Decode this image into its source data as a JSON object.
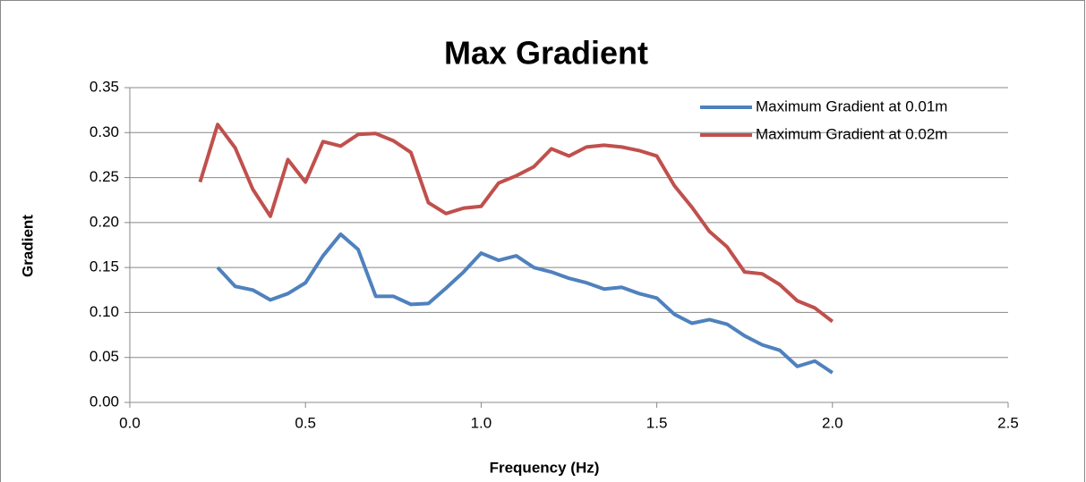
{
  "chart_data": {
    "type": "line",
    "title": "Max Gradient",
    "x_label": "Frequency (Hz)",
    "y_label": "Gradient",
    "series": [
      {
        "name": "Maximum Gradient at 0.01m",
        "color": "#4f81bd",
        "x": [
          0.25,
          0.3,
          0.35,
          0.4,
          0.45,
          0.5,
          0.55,
          0.6,
          0.65,
          0.7,
          0.75,
          0.8,
          0.85,
          0.9,
          0.95,
          1.0,
          1.05,
          1.1,
          1.15,
          1.2,
          1.25,
          1.3,
          1.35,
          1.4,
          1.45,
          1.5,
          1.55,
          1.6,
          1.65,
          1.7,
          1.75,
          1.8,
          1.85,
          1.9,
          1.95,
          2.0
        ],
        "values": [
          0.15,
          0.129,
          0.125,
          0.114,
          0.121,
          0.133,
          0.163,
          0.187,
          0.17,
          0.118,
          0.118,
          0.109,
          0.11,
          0.127,
          0.145,
          0.166,
          0.158,
          0.163,
          0.15,
          0.145,
          0.138,
          0.133,
          0.126,
          0.128,
          0.121,
          0.116,
          0.098,
          0.088,
          0.092,
          0.087,
          0.074,
          0.064,
          0.058,
          0.04,
          0.046,
          0.033
        ]
      },
      {
        "name": "Maximum Gradient at 0.02m",
        "color": "#c0504d",
        "x": [
          0.2,
          0.25,
          0.3,
          0.35,
          0.4,
          0.45,
          0.5,
          0.55,
          0.6,
          0.65,
          0.7,
          0.75,
          0.8,
          0.85,
          0.9,
          0.95,
          1.0,
          1.05,
          1.1,
          1.15,
          1.2,
          1.25,
          1.3,
          1.35,
          1.4,
          1.45,
          1.5,
          1.55,
          1.6,
          1.65,
          1.7,
          1.75,
          1.8,
          1.85,
          1.9,
          1.95,
          2.0
        ],
        "values": [
          0.245,
          0.309,
          0.283,
          0.237,
          0.207,
          0.27,
          0.245,
          0.29,
          0.285,
          0.298,
          0.299,
          0.291,
          0.278,
          0.222,
          0.21,
          0.216,
          0.218,
          0.244,
          0.252,
          0.262,
          0.282,
          0.274,
          0.284,
          0.286,
          0.284,
          0.28,
          0.274,
          0.241,
          0.217,
          0.19,
          0.173,
          0.145,
          0.143,
          0.131,
          0.113,
          0.105,
          0.09
        ]
      }
    ],
    "xlim": [
      0,
      2.5
    ],
    "xticks": [
      {
        "value": 0,
        "label": "0.0"
      },
      {
        "value": 0.5,
        "label": "0.5"
      },
      {
        "value": 1,
        "label": "1.0"
      },
      {
        "value": 1.5,
        "label": "1.5"
      },
      {
        "value": 2,
        "label": "2.0"
      },
      {
        "value": 2.5,
        "label": "2.5"
      }
    ],
    "ylim": [
      0,
      0.35
    ],
    "yticks": [
      {
        "value": 0,
        "label": "0.00"
      },
      {
        "value": 0.05,
        "label": "0.05"
      },
      {
        "value": 0.1,
        "label": "0.10"
      },
      {
        "value": 0.15,
        "label": "0.15"
      },
      {
        "value": 0.2,
        "label": "0.20"
      },
      {
        "value": 0.25,
        "label": "0.25"
      },
      {
        "value": 0.3,
        "label": "0.30"
      },
      {
        "value": 0.35,
        "label": "0.35"
      }
    ],
    "grid": true,
    "legend": "top-right"
  }
}
